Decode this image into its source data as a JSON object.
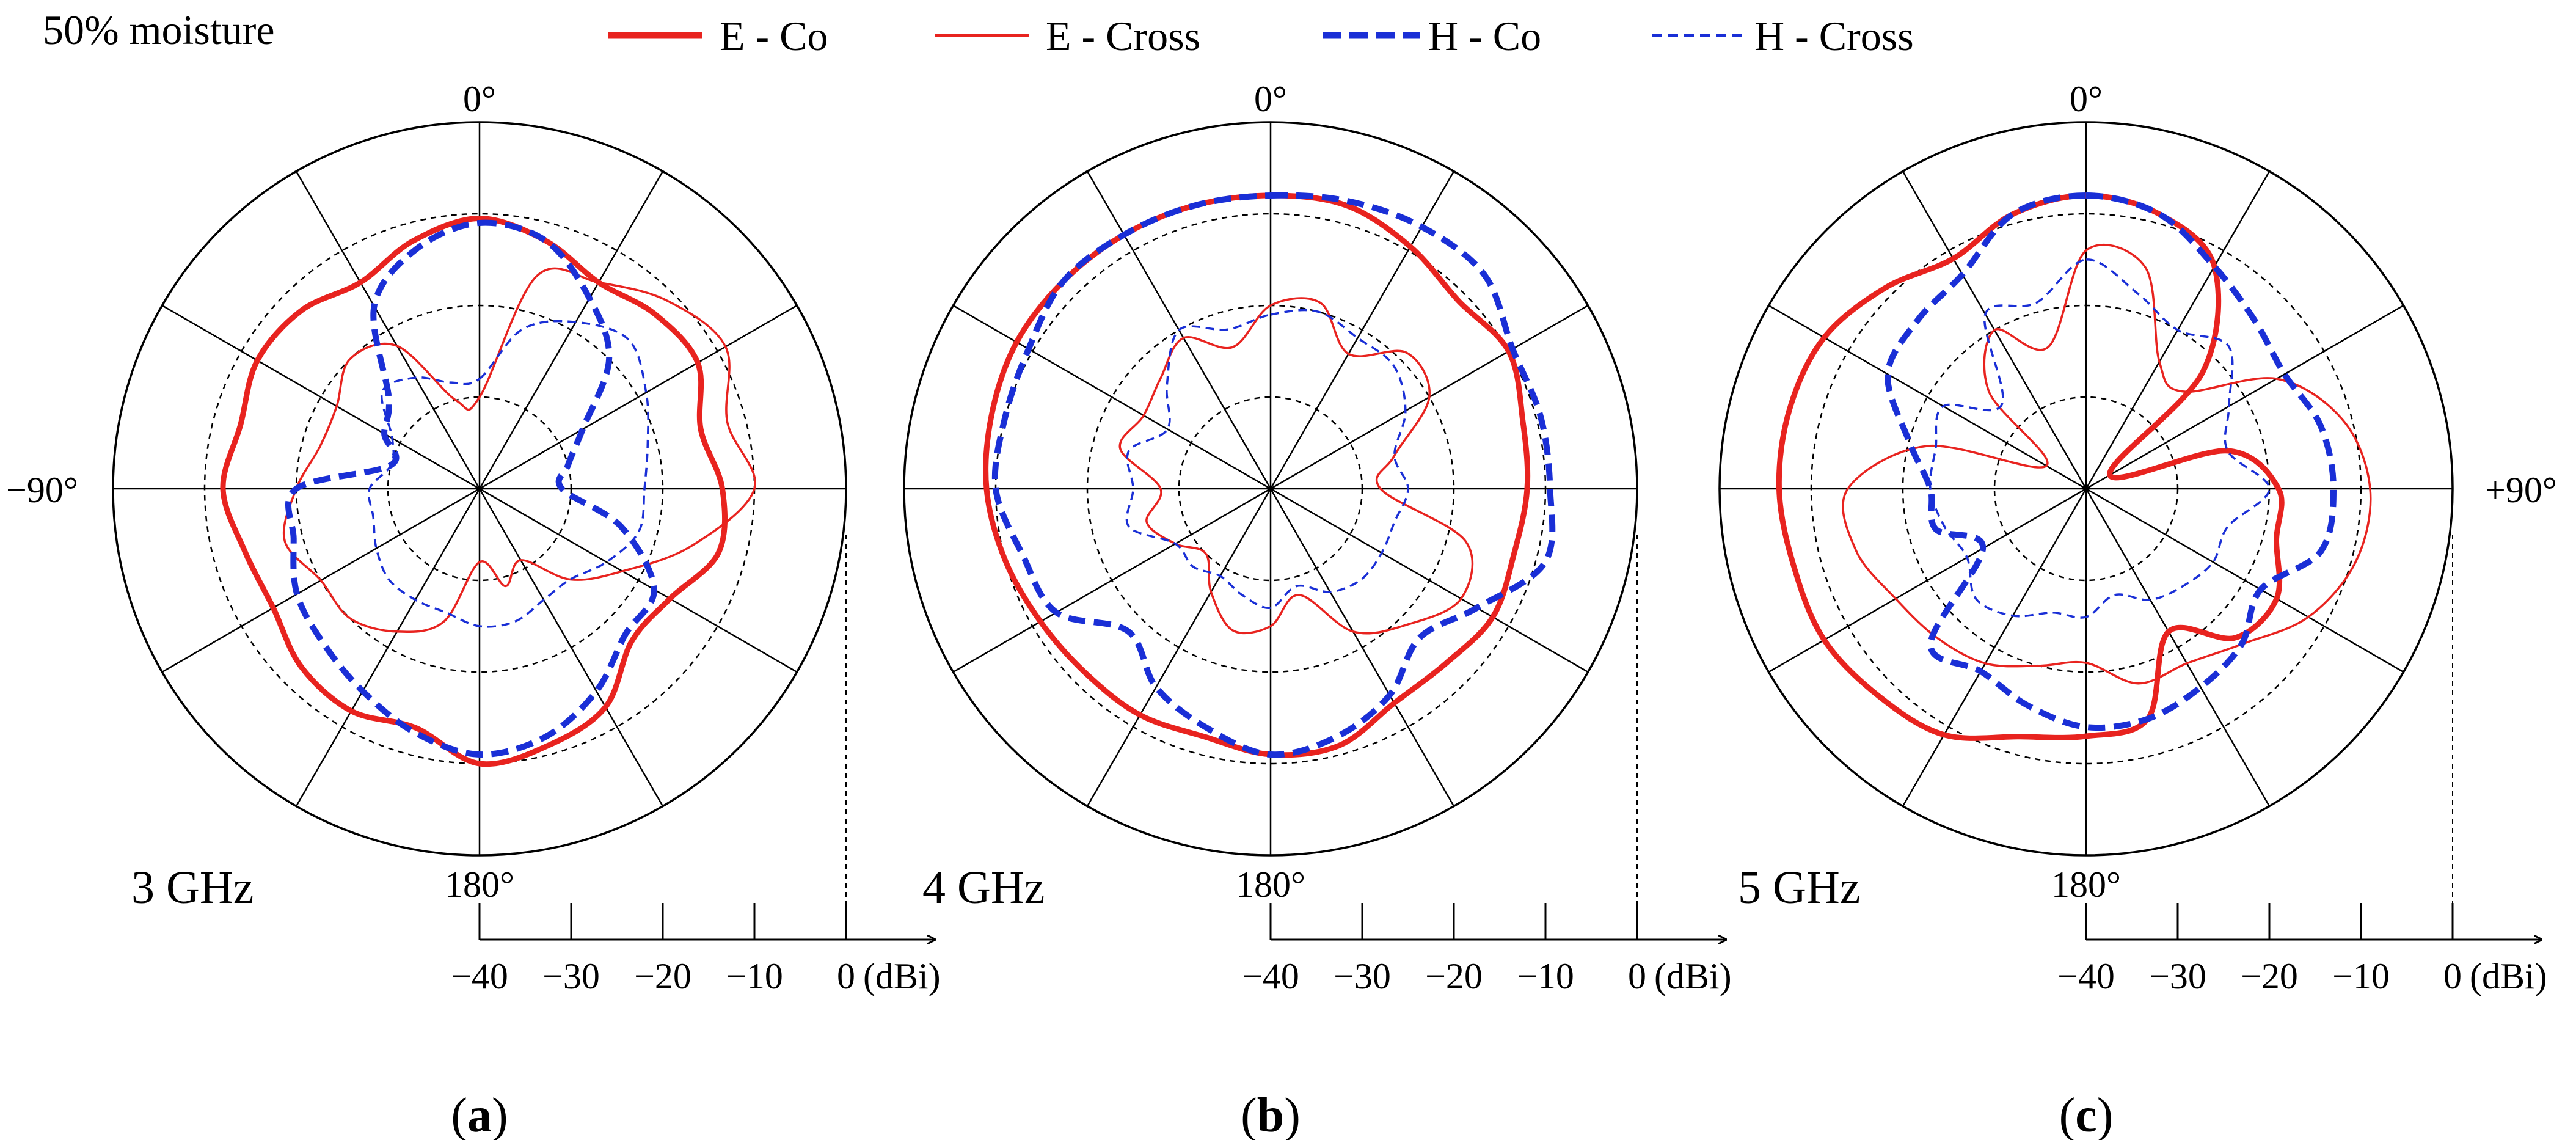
{
  "figure": {
    "note": "50% moisture",
    "legend": [
      {
        "label": "E - Co",
        "color": "#e8231f",
        "style": "solid-thick"
      },
      {
        "label": "E - Cross",
        "color": "#e8231f",
        "style": "solid-thin"
      },
      {
        "label": "H - Co",
        "color": "#1a2fd6",
        "style": "dashed-thick"
      },
      {
        "label": "H - Cross",
        "color": "#1a2fd6",
        "style": "dashed-thin"
      }
    ],
    "angle_labels": {
      "top": "0°",
      "bottom": "180°",
      "left": "−90°",
      "right": "+90°"
    },
    "unit": "(dBi)"
  },
  "chart_data": [
    {
      "type": "polar-line",
      "panel_label": "(a)",
      "title": "3 GHz",
      "radial_axis": {
        "min": -40,
        "max": 0,
        "ticks": [
          -40,
          -30,
          -20,
          -10,
          0
        ],
        "tick_labels": [
          "−40",
          "−30",
          "−20",
          "−10",
          "0"
        ],
        "unit": "dBi"
      },
      "angle_spokes_deg": [
        0,
        30,
        60,
        90,
        120,
        150,
        180,
        210,
        240,
        270,
        300,
        330
      ],
      "series": [
        {
          "name": "E - Co",
          "theta_deg": [
            0,
            15,
            30,
            45,
            60,
            75,
            90,
            105,
            120,
            135,
            150,
            165,
            180,
            195,
            210,
            225,
            240,
            255,
            270,
            285,
            300,
            315,
            330,
            345
          ],
          "gain_dbi": [
            -10.5,
            -12,
            -14,
            -13,
            -12.5,
            -15,
            -13.5,
            -13,
            -16,
            -16.5,
            -12.5,
            -11,
            -10,
            -13,
            -12,
            -12.5,
            -14,
            -13.5,
            -12,
            -13,
            -12,
            -12.5,
            -14,
            -12
          ]
        },
        {
          "name": "E - Cross",
          "theta_deg": [
            0,
            15,
            30,
            45,
            60,
            75,
            90,
            105,
            120,
            135,
            150,
            165,
            180,
            195,
            210,
            225,
            240,
            255,
            270,
            285,
            300,
            315,
            330,
            345
          ],
          "gain_dbi": [
            -30,
            -16,
            -14,
            -11,
            -9,
            -12,
            -10,
            -16,
            -22,
            -26,
            -31,
            -29,
            -32,
            -25,
            -22,
            -20,
            -20,
            -18,
            -20,
            -22,
            -22,
            -20,
            -22,
            -30
          ]
        },
        {
          "name": "H - Co",
          "theta_deg": [
            0,
            15,
            30,
            45,
            60,
            75,
            90,
            105,
            120,
            135,
            150,
            165,
            180,
            195,
            210,
            225,
            240,
            255,
            270,
            285,
            300,
            315,
            330,
            345
          ],
          "gain_dbi": [
            -11,
            -12,
            -16,
            -20,
            -27,
            -30,
            -31,
            -24,
            -18,
            -17.5,
            -14.5,
            -12,
            -11,
            -12.5,
            -14.5,
            -16,
            -17,
            -19,
            -20,
            -30,
            -28,
            -26,
            -17,
            -13
          ]
        },
        {
          "name": "H - Cross",
          "theta_deg": [
            0,
            15,
            30,
            45,
            60,
            75,
            90,
            105,
            120,
            135,
            150,
            165,
            180,
            195,
            210,
            225,
            240,
            255,
            270,
            285,
            300,
            315,
            330,
            345
          ],
          "gain_dbi": [
            -28,
            -22,
            -19,
            -17,
            -19,
            -21,
            -22,
            -22,
            -24,
            -26,
            -26,
            -25,
            -25,
            -26,
            -26,
            -26,
            -27,
            -28,
            -28,
            -30,
            -29,
            -25,
            -26,
            -28
          ]
        }
      ]
    },
    {
      "type": "polar-line",
      "panel_label": "(b)",
      "title": "4 GHz",
      "radial_axis": {
        "min": -40,
        "max": 0,
        "ticks": [
          -40,
          -30,
          -20,
          -10,
          0
        ],
        "tick_labels": [
          "−40",
          "−30",
          "−20",
          "−10",
          "0"
        ],
        "unit": "dBi"
      },
      "angle_spokes_deg": [
        0,
        30,
        60,
        90,
        120,
        150,
        180,
        210,
        240,
        270,
        300,
        330
      ],
      "series": [
        {
          "name": "E - Co",
          "theta_deg": [
            0,
            15,
            30,
            45,
            60,
            75,
            90,
            105,
            120,
            135,
            150,
            165,
            180,
            195,
            210,
            225,
            240,
            255,
            270,
            285,
            300,
            315,
            330,
            345
          ],
          "gain_dbi": [
            -8,
            -8,
            -9.5,
            -11,
            -10,
            -11.5,
            -12,
            -12.5,
            -12,
            -13,
            -13,
            -11,
            -11,
            -12,
            -11.5,
            -11.5,
            -11,
            -10,
            -9,
            -8.5,
            -8,
            -8,
            -8,
            -8
          ]
        },
        {
          "name": "E - Cross",
          "theta_deg": [
            0,
            15,
            30,
            45,
            60,
            75,
            90,
            105,
            120,
            135,
            150,
            165,
            180,
            195,
            210,
            225,
            240,
            255,
            270,
            285,
            300,
            315,
            330,
            345
          ],
          "gain_dbi": [
            -20,
            -19,
            -23,
            -19,
            -20,
            -26,
            -28,
            -18,
            -16,
            -19,
            -22,
            -28,
            -25,
            -24,
            -27,
            -30,
            -28,
            -26,
            -28,
            -23,
            -24,
            -23,
            -21,
            -24
          ]
        },
        {
          "name": "H - Co",
          "theta_deg": [
            0,
            15,
            30,
            45,
            60,
            75,
            90,
            105,
            120,
            135,
            150,
            165,
            180,
            195,
            210,
            225,
            240,
            255,
            270,
            285,
            300,
            315,
            330,
            345
          ],
          "gain_dbi": [
            -8,
            -7.5,
            -7,
            -7,
            -9.5,
            -9.5,
            -9.5,
            -9,
            -14,
            -17,
            -14,
            -12,
            -11,
            -13,
            -15,
            -18,
            -13,
            -12,
            -10,
            -10,
            -9.5,
            -8,
            -8,
            -8
          ]
        },
        {
          "name": "H - Cross",
          "theta_deg": [
            0,
            15,
            30,
            45,
            60,
            75,
            90,
            105,
            120,
            135,
            150,
            165,
            180,
            195,
            210,
            225,
            240,
            255,
            270,
            285,
            300,
            315,
            330,
            345
          ],
          "gain_dbi": [
            -21,
            -20,
            -21,
            -21,
            -23,
            -26,
            -25,
            -26,
            -26,
            -26,
            -27,
            -29,
            -27,
            -28,
            -29,
            -28,
            -28,
            -24,
            -25,
            -24,
            -27,
            -24,
            -20,
            -22
          ]
        }
      ]
    },
    {
      "type": "polar-line",
      "panel_label": "(c)",
      "title": "5 GHz",
      "radial_axis": {
        "min": -40,
        "max": 0,
        "ticks": [
          -40,
          -30,
          -20,
          -10,
          0
        ],
        "tick_labels": [
          "−40",
          "−30",
          "−20",
          "−10",
          "0"
        ],
        "unit": "dBi"
      },
      "angle_spokes_deg": [
        0,
        30,
        60,
        90,
        120,
        150,
        180,
        210,
        240,
        270,
        300,
        330
      ],
      "series": [
        {
          "name": "E - Co",
          "theta_deg": [
            0,
            15,
            30,
            45,
            60,
            75,
            90,
            105,
            120,
            135,
            150,
            165,
            180,
            195,
            210,
            225,
            240,
            255,
            270,
            285,
            300,
            315,
            330,
            345
          ],
          "gain_dbi": [
            -8,
            -9,
            -12,
            -22,
            -37,
            -24,
            -19,
            -18.5,
            -16,
            -17,
            -22,
            -14,
            -13,
            -12,
            -9,
            -8,
            -7,
            -7,
            -6.5,
            -6.5,
            -7,
            -9,
            -11,
            -9
          ]
        },
        {
          "name": "E - Cross",
          "theta_deg": [
            0,
            15,
            30,
            45,
            60,
            75,
            90,
            105,
            120,
            135,
            150,
            165,
            180,
            195,
            210,
            225,
            240,
            255,
            270,
            285,
            300,
            315,
            330,
            345
          ],
          "gain_dbi": [
            -14,
            -15,
            -24,
            -25,
            -16,
            -11,
            -9,
            -9.5,
            -12,
            -16,
            -18,
            -18,
            -21,
            -20,
            -18,
            -17,
            -16,
            -14,
            -14,
            -22,
            -35,
            -25,
            -20,
            -24
          ]
        },
        {
          "name": "H - Co",
          "theta_deg": [
            0,
            15,
            30,
            45,
            60,
            75,
            90,
            105,
            120,
            135,
            150,
            165,
            180,
            195,
            210,
            225,
            240,
            255,
            270,
            285,
            300,
            315,
            330,
            345
          ],
          "gain_dbi": [
            -8,
            -9,
            -12,
            -14,
            -15,
            -13.5,
            -13,
            -13.5,
            -18,
            -16,
            -15,
            -14,
            -14,
            -15.5,
            -17,
            -16,
            -27,
            -23,
            -23,
            -20,
            -15,
            -14,
            -13,
            -9
          ]
        },
        {
          "name": "H - Cross",
          "theta_deg": [
            0,
            15,
            30,
            45,
            60,
            75,
            90,
            105,
            120,
            135,
            150,
            165,
            180,
            195,
            210,
            225,
            240,
            255,
            270,
            285,
            300,
            315,
            330,
            345
          ],
          "gain_dbi": [
            -15,
            -18,
            -20,
            -18,
            -22,
            -24,
            -20,
            -24,
            -24,
            -25,
            -26,
            -28,
            -26,
            -26,
            -24,
            -23,
            -25,
            -24,
            -23,
            -23,
            -22,
            -27,
            -18,
            -19
          ]
        }
      ]
    }
  ]
}
